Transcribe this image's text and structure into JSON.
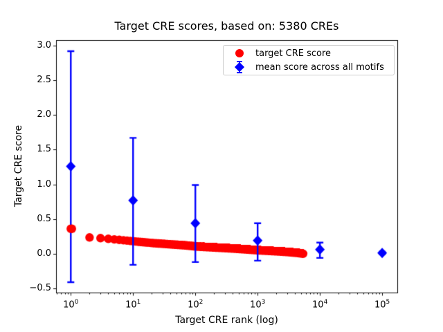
{
  "title": "Target CRE scores, based on: 5380 CREs",
  "axes": {
    "xlabel": "Target CRE rank (log)",
    "ylabel": "Target CRE score",
    "y_tick_labels": [
      "−0.5",
      "0.0",
      "0.5",
      "1.0",
      "1.5",
      "2.0",
      "2.5",
      "3.0"
    ],
    "x_tick_base": "10",
    "x_tick_exponents": [
      0,
      1,
      2,
      3,
      4,
      5
    ]
  },
  "legend": {
    "entries": [
      {
        "label": "target CRE score",
        "marker": "red-circle",
        "color": "#ff0000"
      },
      {
        "label": "mean score across all motifs",
        "marker": "blue-diamond-errorbar",
        "color": "#0000ff"
      }
    ],
    "position": "upper right"
  },
  "colors": {
    "red": "#ff0000",
    "blue": "#0000ff",
    "axis": "#000000",
    "legend_border": "#cccccc",
    "background": "#ffffff"
  },
  "chart_data": {
    "type": "scatter",
    "title": "Target CRE scores, based on: 5380 CREs",
    "xlabel": "Target CRE rank (log)",
    "ylabel": "Target CRE score",
    "x_scale": "log",
    "grid": false,
    "xlim": [
      0.58,
      175000
    ],
    "ylim": [
      -0.56,
      3.08
    ],
    "x_ticks": [
      1,
      10,
      100,
      1000,
      10000,
      100000
    ],
    "y_ticks": [
      -0.5,
      0.0,
      0.5,
      1.0,
      1.5,
      2.0,
      2.5,
      3.0
    ],
    "legend_position": "upper right",
    "series": [
      {
        "name": "target CRE score",
        "type": "scatter",
        "marker": "circle",
        "color": "#ff0000",
        "n_points": 5380,
        "x_range": [
          1,
          5380
        ],
        "note": "descending curve of per-CRE scores vs rank; anchors sampled from plot, linear in log10(rank)",
        "anchors": [
          [
            1,
            0.36
          ],
          [
            2,
            0.235
          ],
          [
            3,
            0.225
          ],
          [
            4,
            0.215
          ],
          [
            6,
            0.2
          ],
          [
            10,
            0.18
          ],
          [
            20,
            0.155
          ],
          [
            40,
            0.135
          ],
          [
            70,
            0.12
          ],
          [
            100,
            0.105
          ],
          [
            200,
            0.09
          ],
          [
            400,
            0.075
          ],
          [
            700,
            0.06
          ],
          [
            1000,
            0.05
          ],
          [
            2000,
            0.035
          ],
          [
            3000,
            0.025
          ],
          [
            4300,
            0.012
          ],
          [
            5380,
            0.0
          ]
        ]
      },
      {
        "name": "mean score across all motifs",
        "type": "errorbar",
        "marker": "diamond",
        "color": "#0000ff",
        "points": [
          {
            "x": 1,
            "y": 1.26,
            "y_err_low": -0.41,
            "y_err_high": 2.92
          },
          {
            "x": 10,
            "y": 0.77,
            "y_err_low": -0.16,
            "y_err_high": 1.67
          },
          {
            "x": 100,
            "y": 0.44,
            "y_err_low": -0.12,
            "y_err_high": 0.99
          },
          {
            "x": 1000,
            "y": 0.19,
            "y_err_low": -0.1,
            "y_err_high": 0.44
          },
          {
            "x": 10000,
            "y": 0.06,
            "y_err_low": -0.06,
            "y_err_high": 0.16
          },
          {
            "x": 100000,
            "y": 0.01,
            "y_err_low": -0.005,
            "y_err_high": 0.03
          }
        ]
      }
    ]
  }
}
